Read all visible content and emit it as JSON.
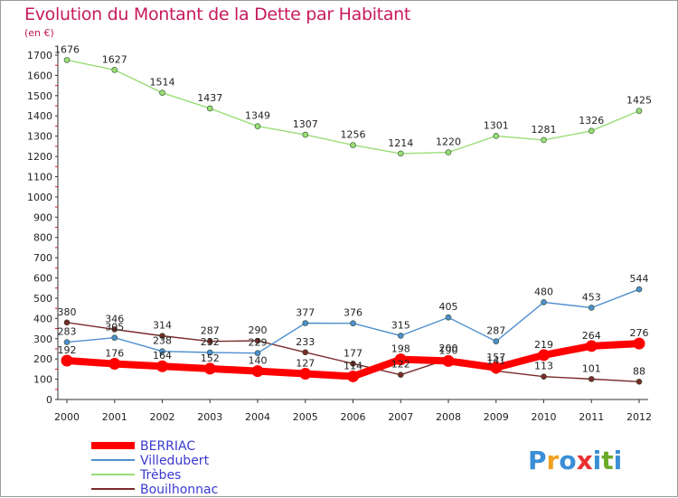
{
  "title": "Evolution du Montant de la Dette par Habitant",
  "unit": "(en €)",
  "logo": "Proxiti",
  "chart_data": {
    "type": "line",
    "title": "Evolution du Montant de la Dette par Habitant",
    "ylabel": "(en €)",
    "ylim": [
      0,
      1700
    ],
    "yticks": [
      0,
      100,
      200,
      300,
      400,
      500,
      600,
      700,
      800,
      900,
      1000,
      1100,
      1200,
      1300,
      1400,
      1500,
      1600,
      1700
    ],
    "grid": false,
    "legend": "bottom-left",
    "x": [
      2000,
      2001,
      2002,
      2003,
      2004,
      2005,
      2006,
      2007,
      2008,
      2009,
      2010,
      2011,
      2012
    ],
    "series": [
      {
        "name": "BERRIAC",
        "color": "#ff0000",
        "values": [
          192,
          176,
          164,
          152,
          140,
          127,
          114,
          198,
          190,
          157,
          219,
          264,
          276
        ]
      },
      {
        "name": "Villedubert",
        "color": "#4f8fcf",
        "values": [
          283,
          305,
          238,
          232,
          229,
          377,
          376,
          315,
          405,
          287,
          480,
          453,
          544
        ]
      },
      {
        "name": "Trèbes",
        "color": "#99dd77",
        "values": [
          1676,
          1627,
          1514,
          1437,
          1349,
          1307,
          1256,
          1214,
          1220,
          1301,
          1281,
          1326,
          1425
        ]
      },
      {
        "name": "Bouilhonnac",
        "color": "#7a2a2a",
        "values": [
          380,
          346,
          314,
          287,
          290,
          233,
          177,
          122,
          200,
          141,
          113,
          101,
          88
        ]
      }
    ]
  }
}
